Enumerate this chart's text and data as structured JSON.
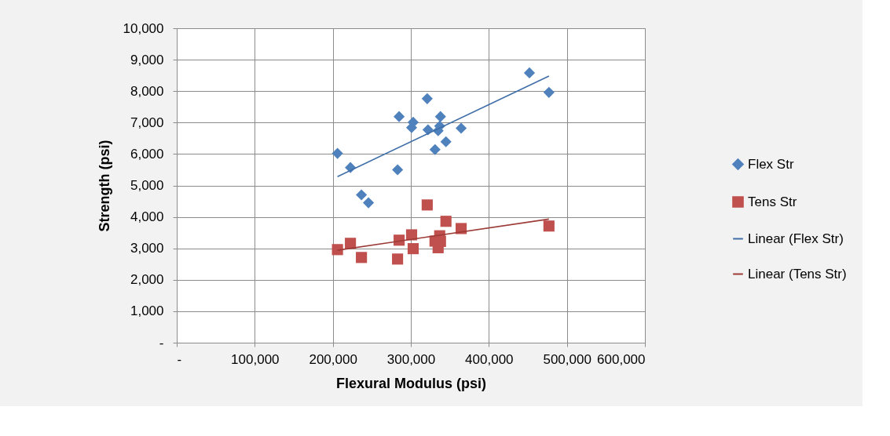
{
  "chart_data": {
    "type": "scatter",
    "xlabel": "Flexural Modulus   (psi)",
    "ylabel": "Strength   (psi)",
    "xlim": [
      0,
      600000
    ],
    "ylim": [
      0,
      10000
    ],
    "xticks": [
      {
        "value": 0,
        "label": "-"
      },
      {
        "value": 100000,
        "label": "100,000"
      },
      {
        "value": 200000,
        "label": "200,000"
      },
      {
        "value": 300000,
        "label": "300,000"
      },
      {
        "value": 400000,
        "label": "400,000"
      },
      {
        "value": 500000,
        "label": "500,000"
      },
      {
        "value": 600000,
        "label": "600,000"
      }
    ],
    "yticks": [
      {
        "value": 0,
        "label": "-"
      },
      {
        "value": 1000,
        "label": "1,000"
      },
      {
        "value": 2000,
        "label": "2,000"
      },
      {
        "value": 3000,
        "label": "3,000"
      },
      {
        "value": 4000,
        "label": "4,000"
      },
      {
        "value": 5000,
        "label": "5,000"
      },
      {
        "value": 6000,
        "label": "6,000"
      },
      {
        "value": 7000,
        "label": "7,000"
      },
      {
        "value": 8000,
        "label": "8,000"
      },
      {
        "value": 9000,
        "label": "9,000"
      },
      {
        "value": 10000,
        "label": "10,000"
      }
    ],
    "grid": true,
    "legend": "right",
    "series": [
      {
        "name": "Flex Str",
        "marker": "diamond",
        "color": "#4f81bd",
        "x": [
          206000,
          222600,
          236700,
          245700,
          283000,
          285000,
          301000,
          303000,
          321000,
          322000,
          335000,
          337000,
          338000,
          331000,
          345000,
          364500,
          452000,
          477000
        ],
        "values": [
          6020,
          5570,
          4700,
          4450,
          5500,
          7190,
          6840,
          7010,
          7760,
          6770,
          6740,
          6890,
          7190,
          6140,
          6390,
          6820,
          8580,
          7960
        ]
      },
      {
        "name": "Tens Str",
        "marker": "square",
        "color": "#c0504d",
        "x": [
          206000,
          222600,
          236700,
          283000,
          285000,
          301000,
          303000,
          321000,
          331000,
          335000,
          337000,
          338000,
          345000,
          364500,
          477000
        ],
        "values": [
          2960,
          3160,
          2710,
          2660,
          3260,
          3430,
          2990,
          4380,
          3230,
          3020,
          3400,
          3220,
          3860,
          3630,
          3710
        ]
      },
      {
        "name": "Linear (Flex Str)",
        "type": "line",
        "marker": "none",
        "line_style": "solid",
        "color": "#3f6ea8",
        "x": [
          206000,
          477000
        ],
        "values": [
          5280,
          8480
        ]
      },
      {
        "name": "Linear (Tens Str)",
        "type": "line",
        "marker": "none",
        "line_style": "solid",
        "color": "#9c3b37",
        "x": [
          206000,
          477000
        ],
        "values": [
          2940,
          3930
        ]
      }
    ]
  }
}
